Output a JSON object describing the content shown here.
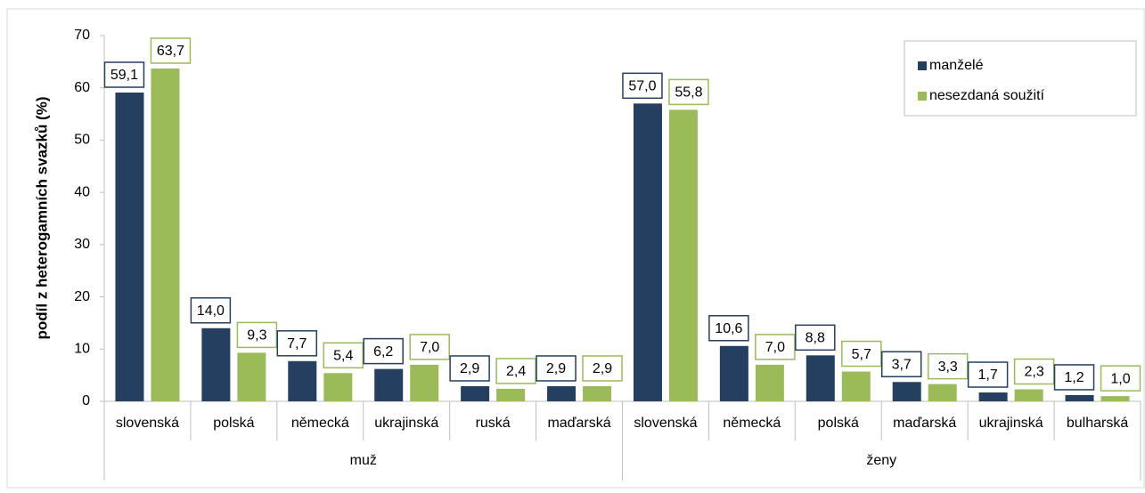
{
  "chart_data": {
    "type": "bar",
    "y_label": "podíl z heterogamních svazků (%)",
    "groups": [
      "muž",
      "ženy"
    ],
    "categories": [
      "slovenská",
      "polská",
      "německá",
      "ukrajinská",
      "ruská",
      "maďarská",
      "slovenská",
      "německá",
      "polská",
      "maďarská",
      "ukrajinská",
      "bulharská"
    ],
    "series": [
      {
        "name": "manželé",
        "color": "#243f60",
        "values": [
          59.1,
          14.0,
          7.7,
          6.2,
          2.9,
          2.9,
          57.0,
          10.6,
          8.8,
          3.7,
          1.7,
          1.2
        ],
        "value_labels": [
          "59,1",
          "14,0",
          "7,7",
          "6,2",
          "2,9",
          "2,9",
          "57,0",
          "10,6",
          "8,8",
          "3,7",
          "1,7",
          "1,2"
        ]
      },
      {
        "name": "nesezdaná soužití",
        "color": "#9bbb59",
        "values": [
          63.7,
          9.3,
          5.4,
          7.0,
          2.4,
          2.9,
          55.8,
          7.0,
          5.7,
          3.3,
          2.3,
          1.0
        ],
        "value_labels": [
          "63,7",
          "9,3",
          "5,4",
          "7,0",
          "2,4",
          "2,9",
          "55,8",
          "7,0",
          "5,7",
          "3,3",
          "2,3",
          "1,0"
        ]
      }
    ],
    "ylim": [
      0,
      70
    ],
    "yticks": [
      0,
      10,
      20,
      30,
      40,
      50,
      60,
      70
    ],
    "grid": false,
    "legend": "top-right"
  }
}
